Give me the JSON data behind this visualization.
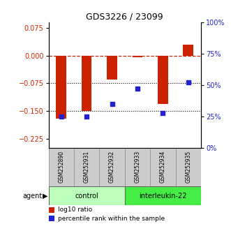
{
  "title": "GDS3226 / 23099",
  "samples": [
    "GSM252890",
    "GSM252931",
    "GSM252932",
    "GSM252933",
    "GSM252934",
    "GSM252935"
  ],
  "log10_ratio": [
    -0.17,
    -0.15,
    -0.065,
    -0.005,
    -0.13,
    0.03
  ],
  "percentile_rank": [
    25,
    25,
    35,
    47,
    28,
    52
  ],
  "groups": [
    {
      "label": "control",
      "start": 0,
      "end": 3,
      "color": "#bbffbb"
    },
    {
      "label": "interleukin-22",
      "start": 3,
      "end": 6,
      "color": "#44ee44"
    }
  ],
  "ylim_left": [
    -0.25,
    0.09
  ],
  "ylim_right": [
    0,
    100
  ],
  "left_ticks": [
    0.075,
    0,
    -0.075,
    -0.15,
    -0.225
  ],
  "right_ticks": [
    100,
    75,
    50,
    25,
    0
  ],
  "bar_color": "#cc2200",
  "dot_color": "#2222cc",
  "hline_y": 0,
  "dotted_lines": [
    -0.075,
    -0.15
  ],
  "background_color": "#ffffff",
  "title_fontsize": 9,
  "bar_width": 0.4
}
